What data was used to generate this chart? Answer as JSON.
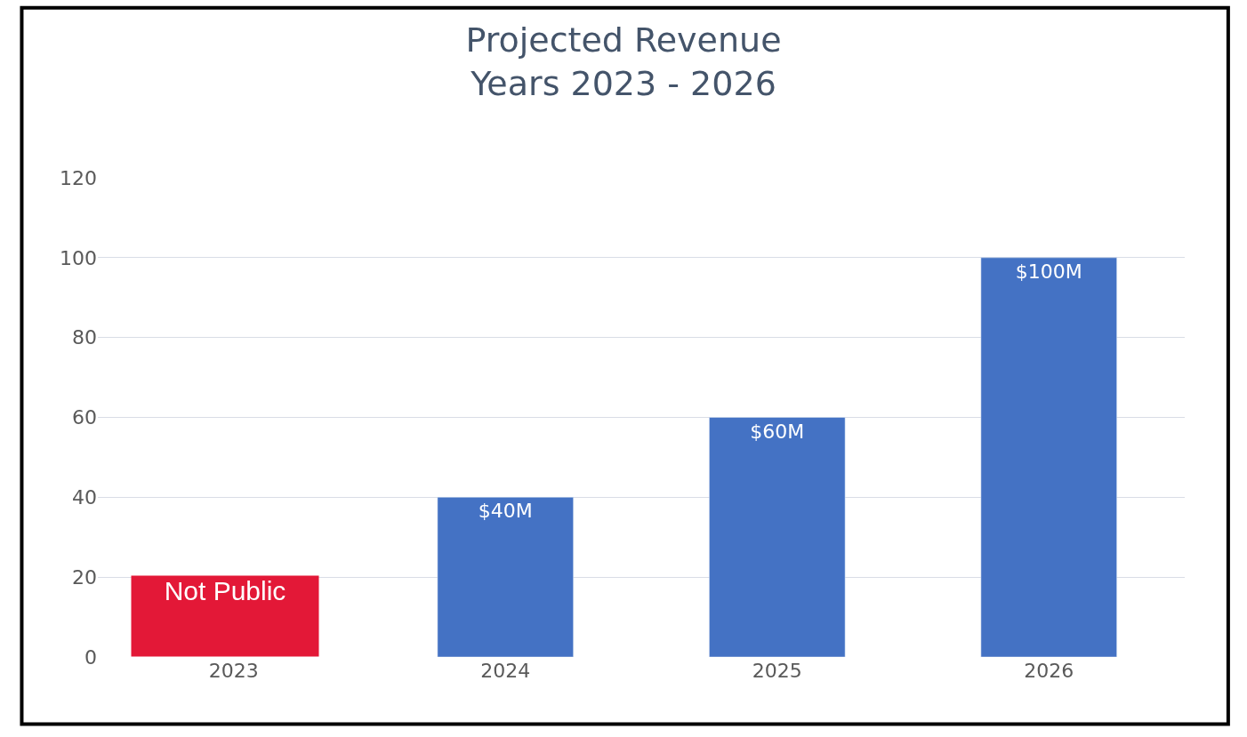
{
  "chart_data": {
    "type": "bar",
    "title": "Projected Revenue\nYears 2023 - 2026",
    "categories": [
      "2023",
      "2024",
      "2025",
      "2026"
    ],
    "values": [
      null,
      40,
      60,
      100
    ],
    "value_labels": [
      null,
      "$40M",
      "$60M",
      "$100M"
    ],
    "color": "#4472c4",
    "ylim": [
      0,
      120
    ],
    "yticks": [
      0,
      20,
      40,
      60,
      80,
      100,
      120
    ],
    "grid": "y",
    "annotations": [
      "Not Public"
    ]
  }
}
